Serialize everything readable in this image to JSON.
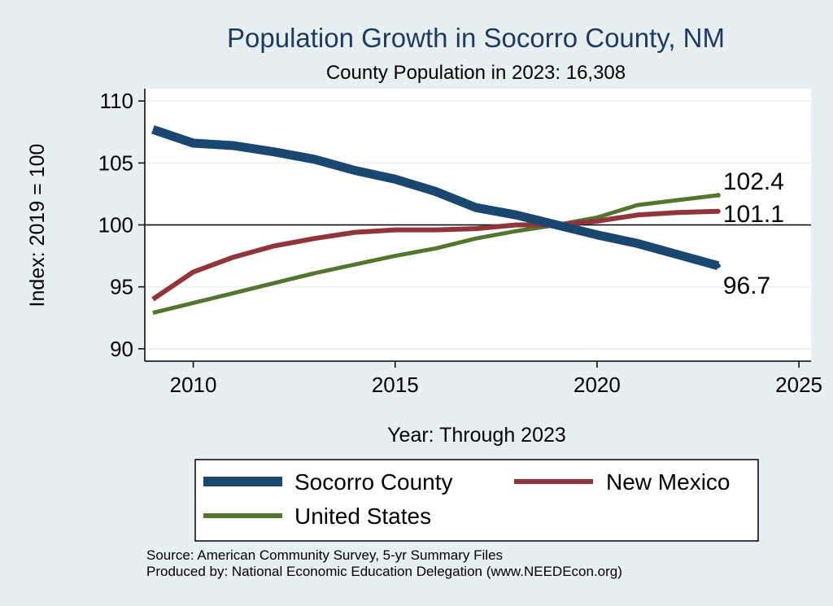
{
  "chart_data": {
    "type": "line",
    "title": "Population Growth in Socorro County, NM",
    "subtitle": "County Population in 2023: 16,308",
    "xlabel": "Year: Through 2023",
    "ylabel": "Index: 2019 = 100",
    "xlim": [
      2008.8,
      2025.3
    ],
    "ylim": [
      89,
      111
    ],
    "xticks": [
      2010,
      2015,
      2020,
      2025
    ],
    "yticks": [
      90,
      95,
      100,
      105,
      110
    ],
    "reference_line": 100,
    "x": [
      2009,
      2010,
      2011,
      2012,
      2013,
      2014,
      2015,
      2016,
      2017,
      2018,
      2019,
      2020,
      2021,
      2022,
      2023
    ],
    "series": [
      {
        "name": "Socorro  County",
        "color": "#1a476f",
        "end_label": "96.7",
        "values": [
          107.7,
          106.6,
          106.4,
          105.9,
          105.3,
          104.4,
          103.7,
          102.7,
          101.4,
          100.8,
          100.0,
          99.2,
          98.5,
          97.6,
          96.7
        ]
      },
      {
        "name": "New Mexico",
        "color": "#90353b",
        "end_label": "101.1",
        "values": [
          94.0,
          96.2,
          97.4,
          98.3,
          98.9,
          99.4,
          99.6,
          99.6,
          99.7,
          100.0,
          100.0,
          100.3,
          100.8,
          101.0,
          101.1
        ]
      },
      {
        "name": "United States",
        "color": "#55752f",
        "end_label": "102.4",
        "values": [
          92.9,
          93.7,
          94.5,
          95.3,
          96.1,
          96.8,
          97.5,
          98.1,
          98.9,
          99.5,
          100.0,
          100.6,
          101.6,
          102.0,
          102.4
        ]
      }
    ],
    "legend": [
      "Socorro  County",
      "New Mexico",
      "United States"
    ]
  },
  "source_line": "Source: American Community Survey, 5-yr Summary Files",
  "produced_line": "Produced by: National Economic Education Delegation (www.NEEDEcon.org)"
}
